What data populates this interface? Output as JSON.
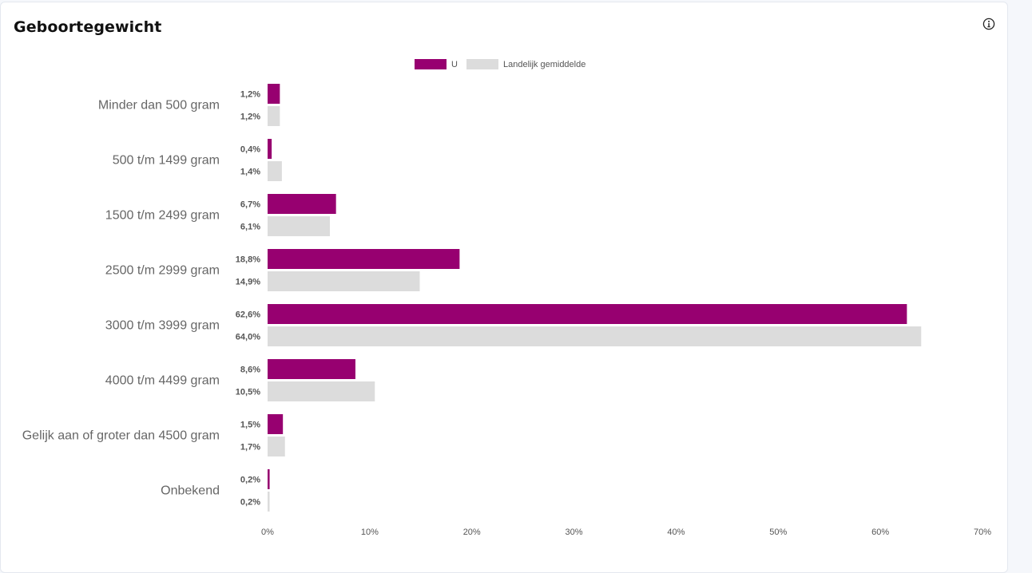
{
  "card": {
    "title": "Geboortegewicht",
    "info_icon": "info-circle-icon"
  },
  "chart_data": {
    "type": "bar",
    "orientation": "horizontal",
    "categories": [
      "Minder dan 500 gram",
      "500 t/m 1499 gram",
      "1500 t/m 2499 gram",
      "2500 t/m 2999 gram",
      "3000 t/m 3999 gram",
      "4000 t/m 4499 gram",
      "Gelijk aan of groter dan 4500 gram",
      "Onbekend"
    ],
    "series": [
      {
        "name": "U",
        "color": "#970070",
        "values": [
          1.2,
          0.4,
          6.7,
          18.8,
          62.6,
          8.6,
          1.5,
          0.2
        ],
        "labels": [
          "1,2%",
          "0,4%",
          "6,7%",
          "18,8%",
          "62,6%",
          "8,6%",
          "1,5%",
          "0,2%"
        ]
      },
      {
        "name": "Landelijk gemiddelde",
        "color": "#dcdcdc",
        "values": [
          1.2,
          1.4,
          6.1,
          14.9,
          64.0,
          10.5,
          1.7,
          0.2
        ],
        "labels": [
          "1,2%",
          "1,4%",
          "6,1%",
          "14,9%",
          "64,0%",
          "10,5%",
          "1,7%",
          "0,2%"
        ]
      }
    ],
    "xlim": [
      0,
      70
    ],
    "xticks": [
      0,
      10,
      20,
      30,
      40,
      50,
      60,
      70
    ],
    "xtick_labels": [
      "0%",
      "10%",
      "20%",
      "30%",
      "40%",
      "50%",
      "60%",
      "70%"
    ],
    "legend_position": "top-center",
    "grid": false
  }
}
